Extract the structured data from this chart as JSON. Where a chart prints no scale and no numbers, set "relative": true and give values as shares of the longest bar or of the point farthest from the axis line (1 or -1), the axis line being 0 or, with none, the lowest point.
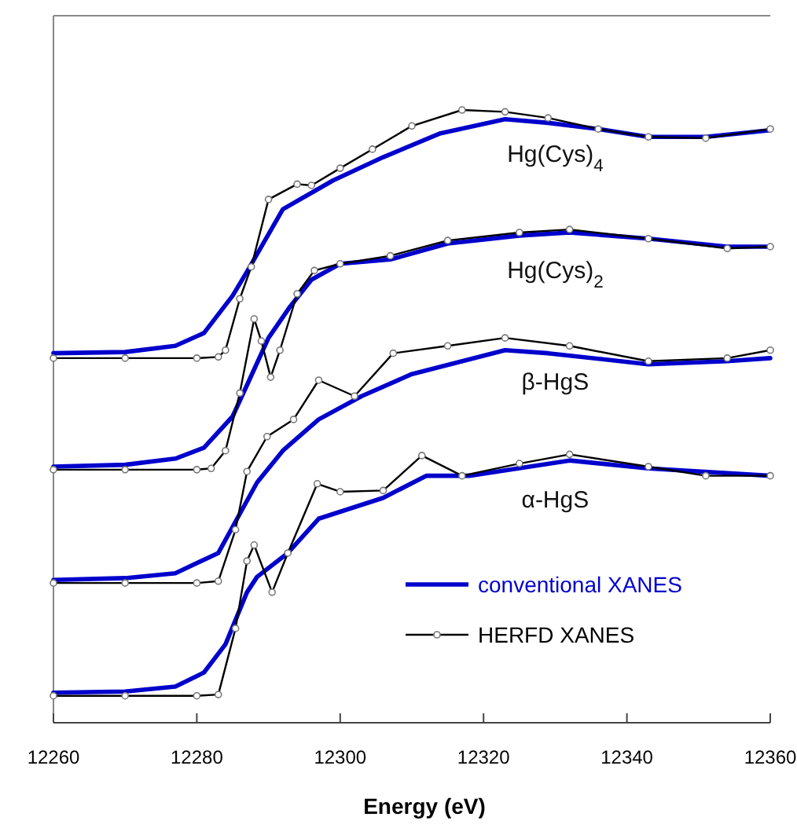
{
  "chart_data": {
    "type": "line",
    "relative": true,
    "xlabel": "Energy (eV)",
    "xlim": [
      12260,
      12360
    ],
    "xticks": [
      12260,
      12280,
      12300,
      12320,
      12340,
      12360
    ],
    "legend": "bottom right",
    "grid": false,
    "annotations": [
      "Hg(Cys)$_{4}$",
      "Hg(Cys)$_{2}$",
      "β-HgS",
      "α-HgS"
    ],
    "series": [
      {
        "name": "conventional XANES",
        "color": "#0000cc",
        "marker": "none",
        "x": [
          12260,
          12270,
          12277,
          12281,
          12285,
          12287,
          12292,
          12299,
          12306,
          12314,
          12323,
          12329,
          12336,
          12343,
          12351,
          12360
        ],
        "values": [
          0.603,
          0.605,
          0.615,
          0.636,
          0.697,
          0.736,
          0.838,
          0.885,
          0.923,
          0.962,
          0.985,
          0.979,
          0.969,
          0.956,
          0.956,
          0.967
        ]
      },
      {
        "name": "HERFD XANES",
        "color": "#000000",
        "marker": "circle",
        "x": [
          12260,
          12270,
          12280,
          12283,
          12284,
          12286,
          12287.6,
          12290,
          12294,
          12296,
          12300,
          12304.5,
          12310,
          12317,
          12323,
          12329,
          12336,
          12343,
          12351,
          12360
        ],
        "values": [
          0.595,
          0.595,
          0.595,
          0.597,
          0.608,
          0.692,
          0.744,
          0.854,
          0.879,
          0.877,
          0.905,
          0.936,
          0.974,
          1.0,
          0.997,
          0.987,
          0.969,
          0.956,
          0.954,
          0.969
        ]
      },
      {
        "color": "#0000cc",
        "marker": "none",
        "x": [
          12260,
          12270,
          12277,
          12281,
          12285,
          12287,
          12290,
          12293,
          12296,
          12300,
          12307,
          12315,
          12325,
          12332,
          12343,
          12354,
          12360
        ],
        "values": [
          0.418,
          0.421,
          0.431,
          0.449,
          0.5,
          0.551,
          0.628,
          0.679,
          0.723,
          0.749,
          0.756,
          0.782,
          0.795,
          0.8,
          0.79,
          0.777,
          0.777
        ]
      },
      {
        "color": "#000000",
        "marker": "circle",
        "x": [
          12260,
          12270,
          12280,
          12282,
          12284,
          12286,
          12288,
          12289,
          12290.3,
          12291.6,
          12294,
          12296.4,
          12300,
          12307,
          12315,
          12325,
          12332,
          12343,
          12354,
          12360
        ],
        "values": [
          0.413,
          0.413,
          0.413,
          0.415,
          0.444,
          0.538,
          0.659,
          0.623,
          0.564,
          0.608,
          0.7,
          0.738,
          0.749,
          0.762,
          0.787,
          0.8,
          0.805,
          0.79,
          0.774,
          0.777
        ]
      },
      {
        "color": "#0000cc",
        "marker": "none",
        "x": [
          12260,
          12270,
          12277,
          12283,
          12286,
          12288.4,
          12292,
          12297,
          12303,
          12310,
          12323,
          12329,
          12343,
          12354,
          12360
        ],
        "values": [
          0.233,
          0.236,
          0.244,
          0.277,
          0.341,
          0.392,
          0.444,
          0.495,
          0.533,
          0.569,
          0.608,
          0.603,
          0.585,
          0.59,
          0.595
        ]
      },
      {
        "color": "#000000",
        "marker": "circle",
        "x": [
          12260,
          12270,
          12280,
          12283,
          12285.4,
          12287,
          12289.8,
          12293.5,
          12297,
          12302,
          12307.4,
          12315,
          12323,
          12332,
          12343,
          12354,
          12360
        ],
        "values": [
          0.228,
          0.228,
          0.228,
          0.231,
          0.315,
          0.41,
          0.467,
          0.495,
          0.559,
          0.533,
          0.603,
          0.615,
          0.628,
          0.615,
          0.59,
          0.595,
          0.608
        ]
      },
      {
        "color": "#0000cc",
        "marker": "none",
        "x": [
          12260,
          12270,
          12277,
          12281,
          12284,
          12287,
          12288.4,
          12292.7,
          12297,
          12306,
          12312,
          12318,
          12332,
          12343,
          12360
        ],
        "values": [
          0.049,
          0.051,
          0.059,
          0.082,
          0.128,
          0.213,
          0.238,
          0.277,
          0.333,
          0.367,
          0.403,
          0.403,
          0.428,
          0.415,
          0.403
        ]
      },
      {
        "color": "#000000",
        "marker": "circle",
        "x": [
          12260,
          12270,
          12280,
          12283,
          12285.4,
          12287,
          12288,
          12290.5,
          12292.7,
          12296.8,
          12300,
          12306,
          12311.4,
          12317,
          12325,
          12332,
          12343,
          12351,
          12360
        ],
        "values": [
          0.044,
          0.044,
          0.044,
          0.046,
          0.154,
          0.264,
          0.29,
          0.213,
          0.277,
          0.39,
          0.377,
          0.379,
          0.436,
          0.403,
          0.423,
          0.438,
          0.418,
          0.403,
          0.403
        ]
      }
    ]
  }
}
